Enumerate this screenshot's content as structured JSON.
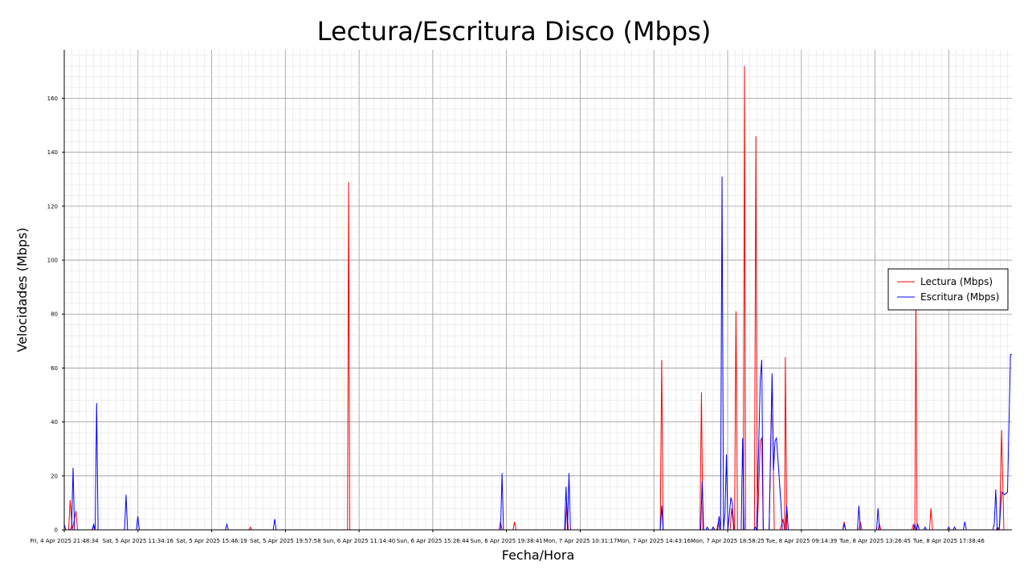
{
  "chart_data": {
    "type": "line",
    "title": "Lectura/Escritura Disco (Mbps)",
    "xlabel": "Fecha/Hora",
    "ylabel": "Velocidades (Mbps)",
    "ylim": [
      0,
      178
    ],
    "yticks": [
      0,
      20,
      40,
      60,
      80,
      100,
      120,
      140,
      160
    ],
    "grid": true,
    "legend_position": "right",
    "x_tick_labels": [
      "Fri, 4 Apr 2025 21:48:34",
      "Sat, 5 Apr 2025 11:34:16",
      "Sat, 5 Apr 2025 15:46:19",
      "Sat, 5 Apr 2025 19:57:58",
      "Sun, 6 Apr 2025 11:14:40",
      "Sun, 6 Apr 2025 15:26:44",
      "Sun, 6 Apr 2025 19:38:41",
      "Mon, 7 Apr 2025 10:31:17",
      "Mon, 7 Apr 2025 14:43:16",
      "Mon, 7 Apr 2025 18:58:25",
      "Tue, 8 Apr 2025 09:14:39",
      "Tue, 8 Apr 2025 13:26:45",
      "Tue, 8 Apr 2025 17:38:46"
    ],
    "x_range": [
      0,
      257.6
    ],
    "series": [
      {
        "name": "Lectura (Mbps)",
        "color": "#ff0000",
        "points": [
          [
            0,
            0
          ],
          [
            1.2,
            0
          ],
          [
            1.6,
            11
          ],
          [
            2.2,
            0
          ],
          [
            3.2,
            7
          ],
          [
            3.6,
            0
          ],
          [
            7.6,
            0
          ],
          [
            8.0,
            1
          ],
          [
            8.4,
            0
          ],
          [
            27.2,
            0
          ],
          [
            40,
            0
          ],
          [
            50.2,
            0
          ],
          [
            50.6,
            1
          ],
          [
            51,
            0
          ],
          [
            77,
            0
          ],
          [
            77.3,
            129
          ],
          [
            77.6,
            0
          ],
          [
            118.2,
            0
          ],
          [
            118.6,
            3
          ],
          [
            119,
            0
          ],
          [
            122,
            0
          ],
          [
            122.4,
            3
          ],
          [
            122.8,
            0
          ],
          [
            136.2,
            0
          ],
          [
            136.6,
            10
          ],
          [
            137,
            0
          ],
          [
            162,
            0
          ],
          [
            162.4,
            63
          ],
          [
            162.8,
            0
          ],
          [
            172.8,
            0
          ],
          [
            173.2,
            51
          ],
          [
            173.6,
            0
          ],
          [
            176,
            0
          ],
          [
            176.4,
            1
          ],
          [
            176.8,
            0
          ],
          [
            177.4,
            0
          ],
          [
            177.8,
            3
          ],
          [
            178.2,
            0
          ],
          [
            181,
            0
          ],
          [
            181.4,
            8
          ],
          [
            181.8,
            3
          ],
          [
            182.2,
            0
          ],
          [
            182.6,
            81
          ],
          [
            183,
            0
          ],
          [
            184.6,
            0
          ],
          [
            184.9,
            172
          ],
          [
            185.2,
            0
          ],
          [
            187.6,
            0
          ],
          [
            188,
            146
          ],
          [
            188.4,
            0
          ],
          [
            189.2,
            33
          ],
          [
            189.6,
            34
          ],
          [
            190,
            0
          ],
          [
            191.6,
            0
          ],
          [
            192.4,
            57
          ],
          [
            193,
            0
          ],
          [
            194.6,
            0
          ],
          [
            195.4,
            4
          ],
          [
            195.8,
            0
          ],
          [
            196,
            64
          ],
          [
            196.4,
            0
          ],
          [
            211.6,
            0
          ],
          [
            212,
            3
          ],
          [
            212.4,
            0
          ],
          [
            216,
            0
          ],
          [
            216.4,
            3
          ],
          [
            216.8,
            0
          ],
          [
            221.2,
            0
          ],
          [
            221.6,
            2
          ],
          [
            222,
            0
          ],
          [
            230.4,
            0
          ],
          [
            230.8,
            2
          ],
          [
            231.2,
            0
          ],
          [
            231.5,
            87
          ],
          [
            231.8,
            0
          ],
          [
            235.2,
            0
          ],
          [
            235.6,
            8
          ],
          [
            236,
            0
          ],
          [
            253.4,
            0
          ],
          [
            253.6,
            1
          ],
          [
            254.2,
            0
          ],
          [
            254.8,
            37
          ],
          [
            255.4,
            0
          ],
          [
            256.4,
            0
          ],
          [
            257.6,
            0
          ]
        ]
      },
      {
        "name": "Escritura (Mbps)",
        "color": "#0000ff",
        "points": [
          [
            0,
            2
          ],
          [
            0.4,
            0
          ],
          [
            1.6,
            0
          ],
          [
            2,
            1
          ],
          [
            2.4,
            23
          ],
          [
            2.8,
            0
          ],
          [
            7.6,
            0
          ],
          [
            8,
            2
          ],
          [
            8.4,
            0
          ],
          [
            8.8,
            47
          ],
          [
            9.2,
            0
          ],
          [
            16.4,
            0
          ],
          [
            16.8,
            13
          ],
          [
            17.2,
            0
          ],
          [
            19.6,
            0
          ],
          [
            20,
            5
          ],
          [
            20.4,
            0
          ],
          [
            43.8,
            0
          ],
          [
            44.2,
            2
          ],
          [
            44.6,
            0
          ],
          [
            56.8,
            0
          ],
          [
            57.2,
            4
          ],
          [
            57.6,
            0
          ],
          [
            118.6,
            0
          ],
          [
            119,
            21
          ],
          [
            119.4,
            0
          ],
          [
            136,
            0
          ],
          [
            136.4,
            16
          ],
          [
            136.8,
            0
          ],
          [
            137.2,
            21
          ],
          [
            137.6,
            0
          ],
          [
            162,
            0
          ],
          [
            162.4,
            9
          ],
          [
            162.8,
            0
          ],
          [
            173,
            0
          ],
          [
            173.4,
            18
          ],
          [
            173.8,
            0
          ],
          [
            174.4,
            0
          ],
          [
            174.8,
            1
          ],
          [
            175.2,
            0
          ],
          [
            176,
            0
          ],
          [
            176.4,
            1
          ],
          [
            176.8,
            0
          ],
          [
            177.6,
            0
          ],
          [
            178,
            5
          ],
          [
            178.4,
            0
          ],
          [
            178.8,
            131
          ],
          [
            179.2,
            0
          ],
          [
            179.6,
            6
          ],
          [
            180,
            28
          ],
          [
            180.4,
            0
          ],
          [
            180.8,
            6
          ],
          [
            181.2,
            12
          ],
          [
            181.6,
            10
          ],
          [
            182,
            0
          ],
          [
            184,
            0
          ],
          [
            184.4,
            34
          ],
          [
            184.8,
            0
          ],
          [
            187.4,
            0
          ],
          [
            187.8,
            1
          ],
          [
            188.2,
            0
          ],
          [
            189.2,
            56
          ],
          [
            189.6,
            63
          ],
          [
            190,
            0
          ],
          [
            191.6,
            0
          ],
          [
            192.4,
            58
          ],
          [
            192.8,
            22
          ],
          [
            193.2,
            33
          ],
          [
            193.6,
            34
          ],
          [
            194,
            26
          ],
          [
            194.4,
            18
          ],
          [
            194.8,
            10
          ],
          [
            195.2,
            0
          ],
          [
            196,
            0
          ],
          [
            196.4,
            9
          ],
          [
            196.8,
            0
          ],
          [
            211.6,
            0
          ],
          [
            212,
            2
          ],
          [
            212.4,
            0
          ],
          [
            215.6,
            0
          ],
          [
            216,
            9
          ],
          [
            216.4,
            0
          ],
          [
            220.8,
            0
          ],
          [
            221.2,
            8
          ],
          [
            221.6,
            0
          ],
          [
            230.8,
            0
          ],
          [
            231.2,
            2
          ],
          [
            231.6,
            0
          ],
          [
            232,
            2
          ],
          [
            232.4,
            0
          ],
          [
            233.6,
            0
          ],
          [
            234,
            1
          ],
          [
            234.4,
            0
          ],
          [
            240,
            0
          ],
          [
            240.4,
            1
          ],
          [
            240.8,
            0
          ],
          [
            241.6,
            0
          ],
          [
            242,
            1
          ],
          [
            242.4,
            0
          ],
          [
            244.4,
            0
          ],
          [
            244.8,
            3
          ],
          [
            245.2,
            0
          ],
          [
            252.4,
            0
          ],
          [
            252.8,
            2
          ],
          [
            253.2,
            15
          ],
          [
            253.6,
            0
          ],
          [
            254.2,
            1
          ],
          [
            254.8,
            14
          ],
          [
            255.6,
            13
          ],
          [
            256.4,
            14
          ],
          [
            257.2,
            65
          ],
          [
            257.6,
            65
          ]
        ]
      }
    ]
  }
}
